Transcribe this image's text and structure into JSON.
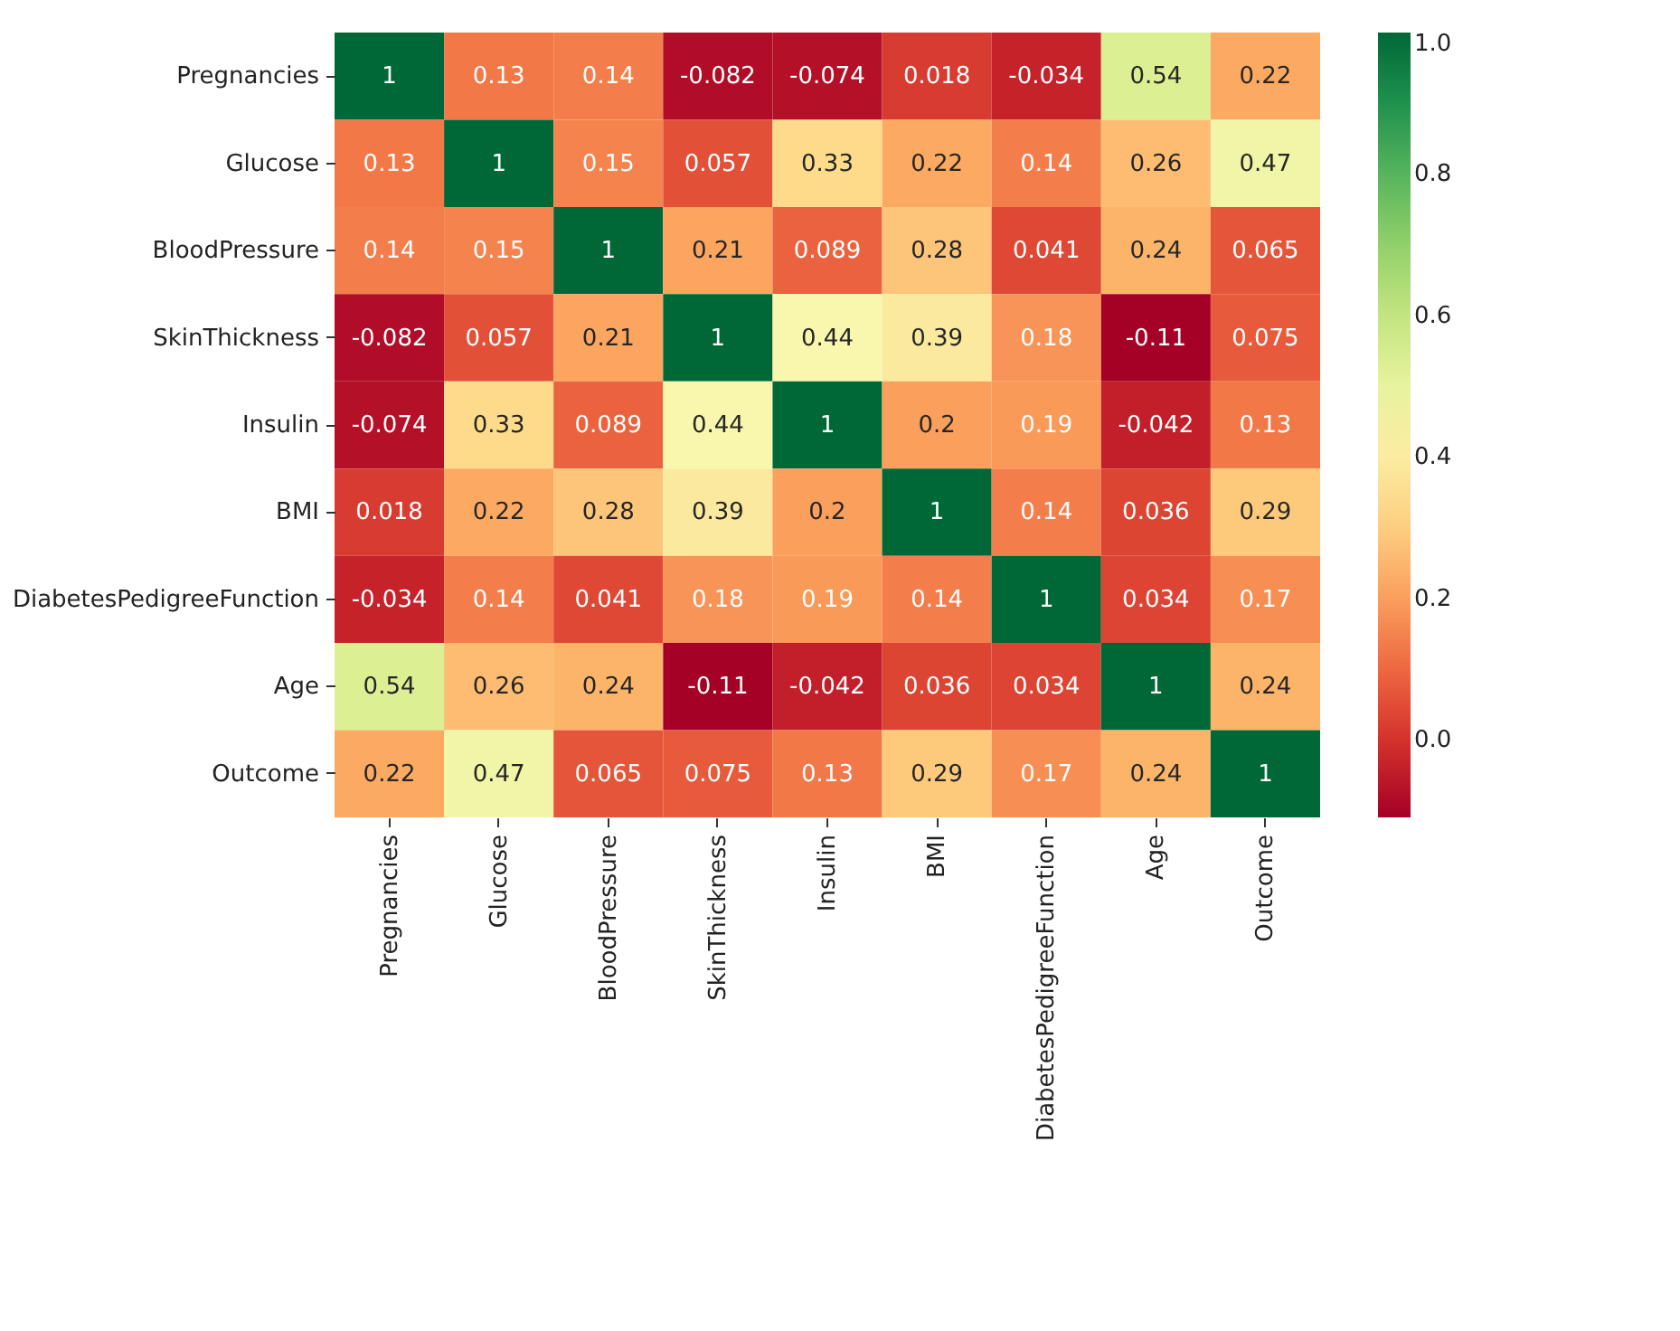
{
  "chart_data": {
    "type": "heatmap",
    "categories": [
      "Pregnancies",
      "Glucose",
      "BloodPressure",
      "SkinThickness",
      "Insulin",
      "BMI",
      "DiabetesPedigreeFunction",
      "Age",
      "Outcome"
    ],
    "y_categories": [
      "Pregnancies",
      "Glucose",
      "BloodPressure",
      "SkinThickness",
      "Insulin",
      "BMI",
      "DiabetesPedigreeFunction",
      "Age",
      "Outcome"
    ],
    "cells": [
      [
        1,
        0.13,
        0.14,
        -0.082,
        -0.074,
        0.018,
        -0.034,
        0.54,
        0.22
      ],
      [
        0.13,
        1,
        0.15,
        0.057,
        0.33,
        0.22,
        0.14,
        0.26,
        0.47
      ],
      [
        0.14,
        0.15,
        1,
        0.21,
        0.089,
        0.28,
        0.041,
        0.24,
        0.065
      ],
      [
        -0.082,
        0.057,
        0.21,
        1,
        0.44,
        0.39,
        0.18,
        -0.11,
        0.075
      ],
      [
        -0.074,
        0.33,
        0.089,
        0.44,
        1,
        0.2,
        0.19,
        -0.042,
        0.13
      ],
      [
        0.018,
        0.22,
        0.28,
        0.39,
        0.2,
        1,
        0.14,
        0.036,
        0.29
      ],
      [
        -0.034,
        0.14,
        0.041,
        0.18,
        0.19,
        0.14,
        1,
        0.034,
        0.17
      ],
      [
        0.54,
        0.26,
        0.24,
        -0.11,
        -0.042,
        0.036,
        0.034,
        1,
        0.24
      ],
      [
        0.22,
        0.47,
        0.065,
        0.075,
        0.13,
        0.29,
        0.17,
        0.24,
        1
      ]
    ],
    "data_labels": true,
    "clim": [
      -0.11,
      1
    ],
    "cticks": [
      {
        "value": 0,
        "label": "0.0"
      },
      {
        "value": 0.2,
        "label": "0.2"
      },
      {
        "value": 0.4,
        "label": "0.4"
      },
      {
        "value": 0.6,
        "label": "0.6"
      },
      {
        "value": 0.8,
        "label": "0.8"
      },
      {
        "value": 1,
        "label": "1.0"
      }
    ]
  }
}
